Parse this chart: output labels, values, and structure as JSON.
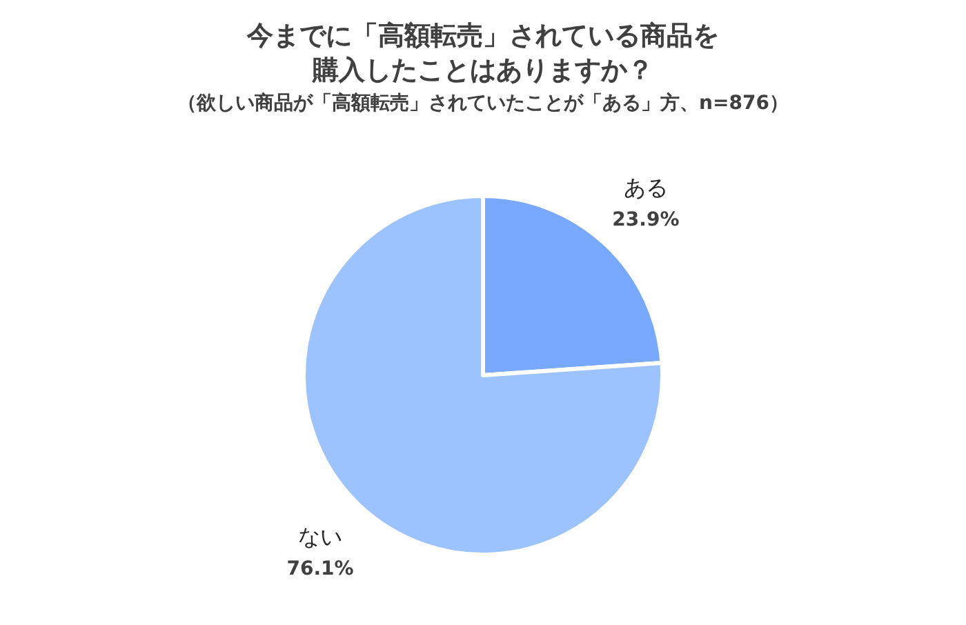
{
  "chart_data": {
    "type": "pie",
    "title": "今までに「高額転売」されている商品を購入したことはありますか？",
    "subtitle": "（欲しい商品が「高額転売」されていたことが「ある」方、n=876）",
    "categories": [
      "ある",
      "ない"
    ],
    "values": [
      23.9,
      76.1
    ],
    "colors": [
      "#78a9ff",
      "#9dc3ff"
    ],
    "value_labels": [
      "23.9%",
      "76.1%"
    ]
  }
}
